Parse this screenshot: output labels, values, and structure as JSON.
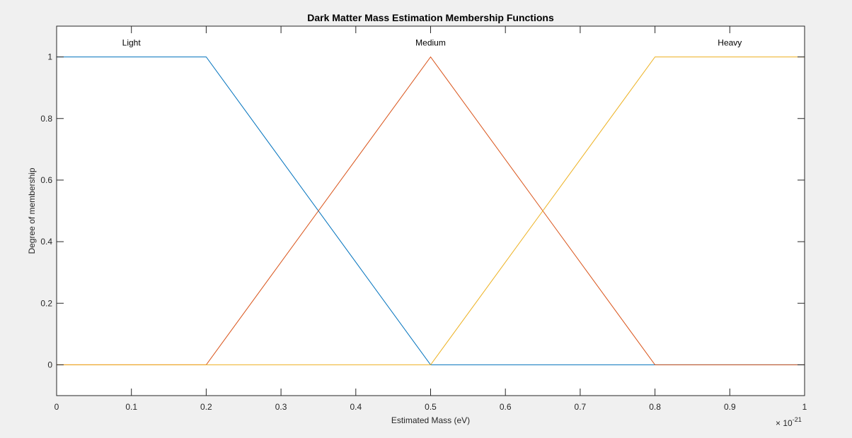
{
  "chart_data": {
    "type": "line",
    "title": "Dark Matter Mass Estimation Membership Functions",
    "xlabel": "Estimated Mass (eV)",
    "ylabel": "Degree of membership",
    "x_exponent_base": "× 10",
    "x_exponent_power": "-21",
    "xlim": [
      0,
      1
    ],
    "ylim": [
      -0.1,
      1.1
    ],
    "xticks": [
      0,
      0.1,
      0.2,
      0.3,
      0.4,
      0.5,
      0.6,
      0.7,
      0.8,
      0.9,
      1
    ],
    "xtick_labels": [
      "0",
      "0.1",
      "0.2",
      "0.3",
      "0.4",
      "0.5",
      "0.6",
      "0.7",
      "0.8",
      "0.9",
      "1"
    ],
    "yticks": [
      0,
      0.2,
      0.4,
      0.6,
      0.8,
      1
    ],
    "ytick_labels": [
      "0",
      "0.2",
      "0.4",
      "0.6",
      "0.8",
      "1"
    ],
    "grid": false,
    "series": [
      {
        "name": "Light",
        "color": "#0072bd",
        "x": [
          0,
          0.2,
          0.5,
          1
        ],
        "y": [
          1,
          1,
          0,
          0
        ],
        "label_x": 0.1
      },
      {
        "name": "Medium",
        "color": "#d95319",
        "x": [
          0,
          0.2,
          0.5,
          0.8,
          1
        ],
        "y": [
          0,
          0,
          1,
          0,
          0
        ],
        "label_x": 0.5
      },
      {
        "name": "Heavy",
        "color": "#edb120",
        "x": [
          0,
          0.5,
          0.8,
          1
        ],
        "y": [
          0,
          0,
          1,
          1
        ],
        "label_x": 0.9
      }
    ]
  }
}
